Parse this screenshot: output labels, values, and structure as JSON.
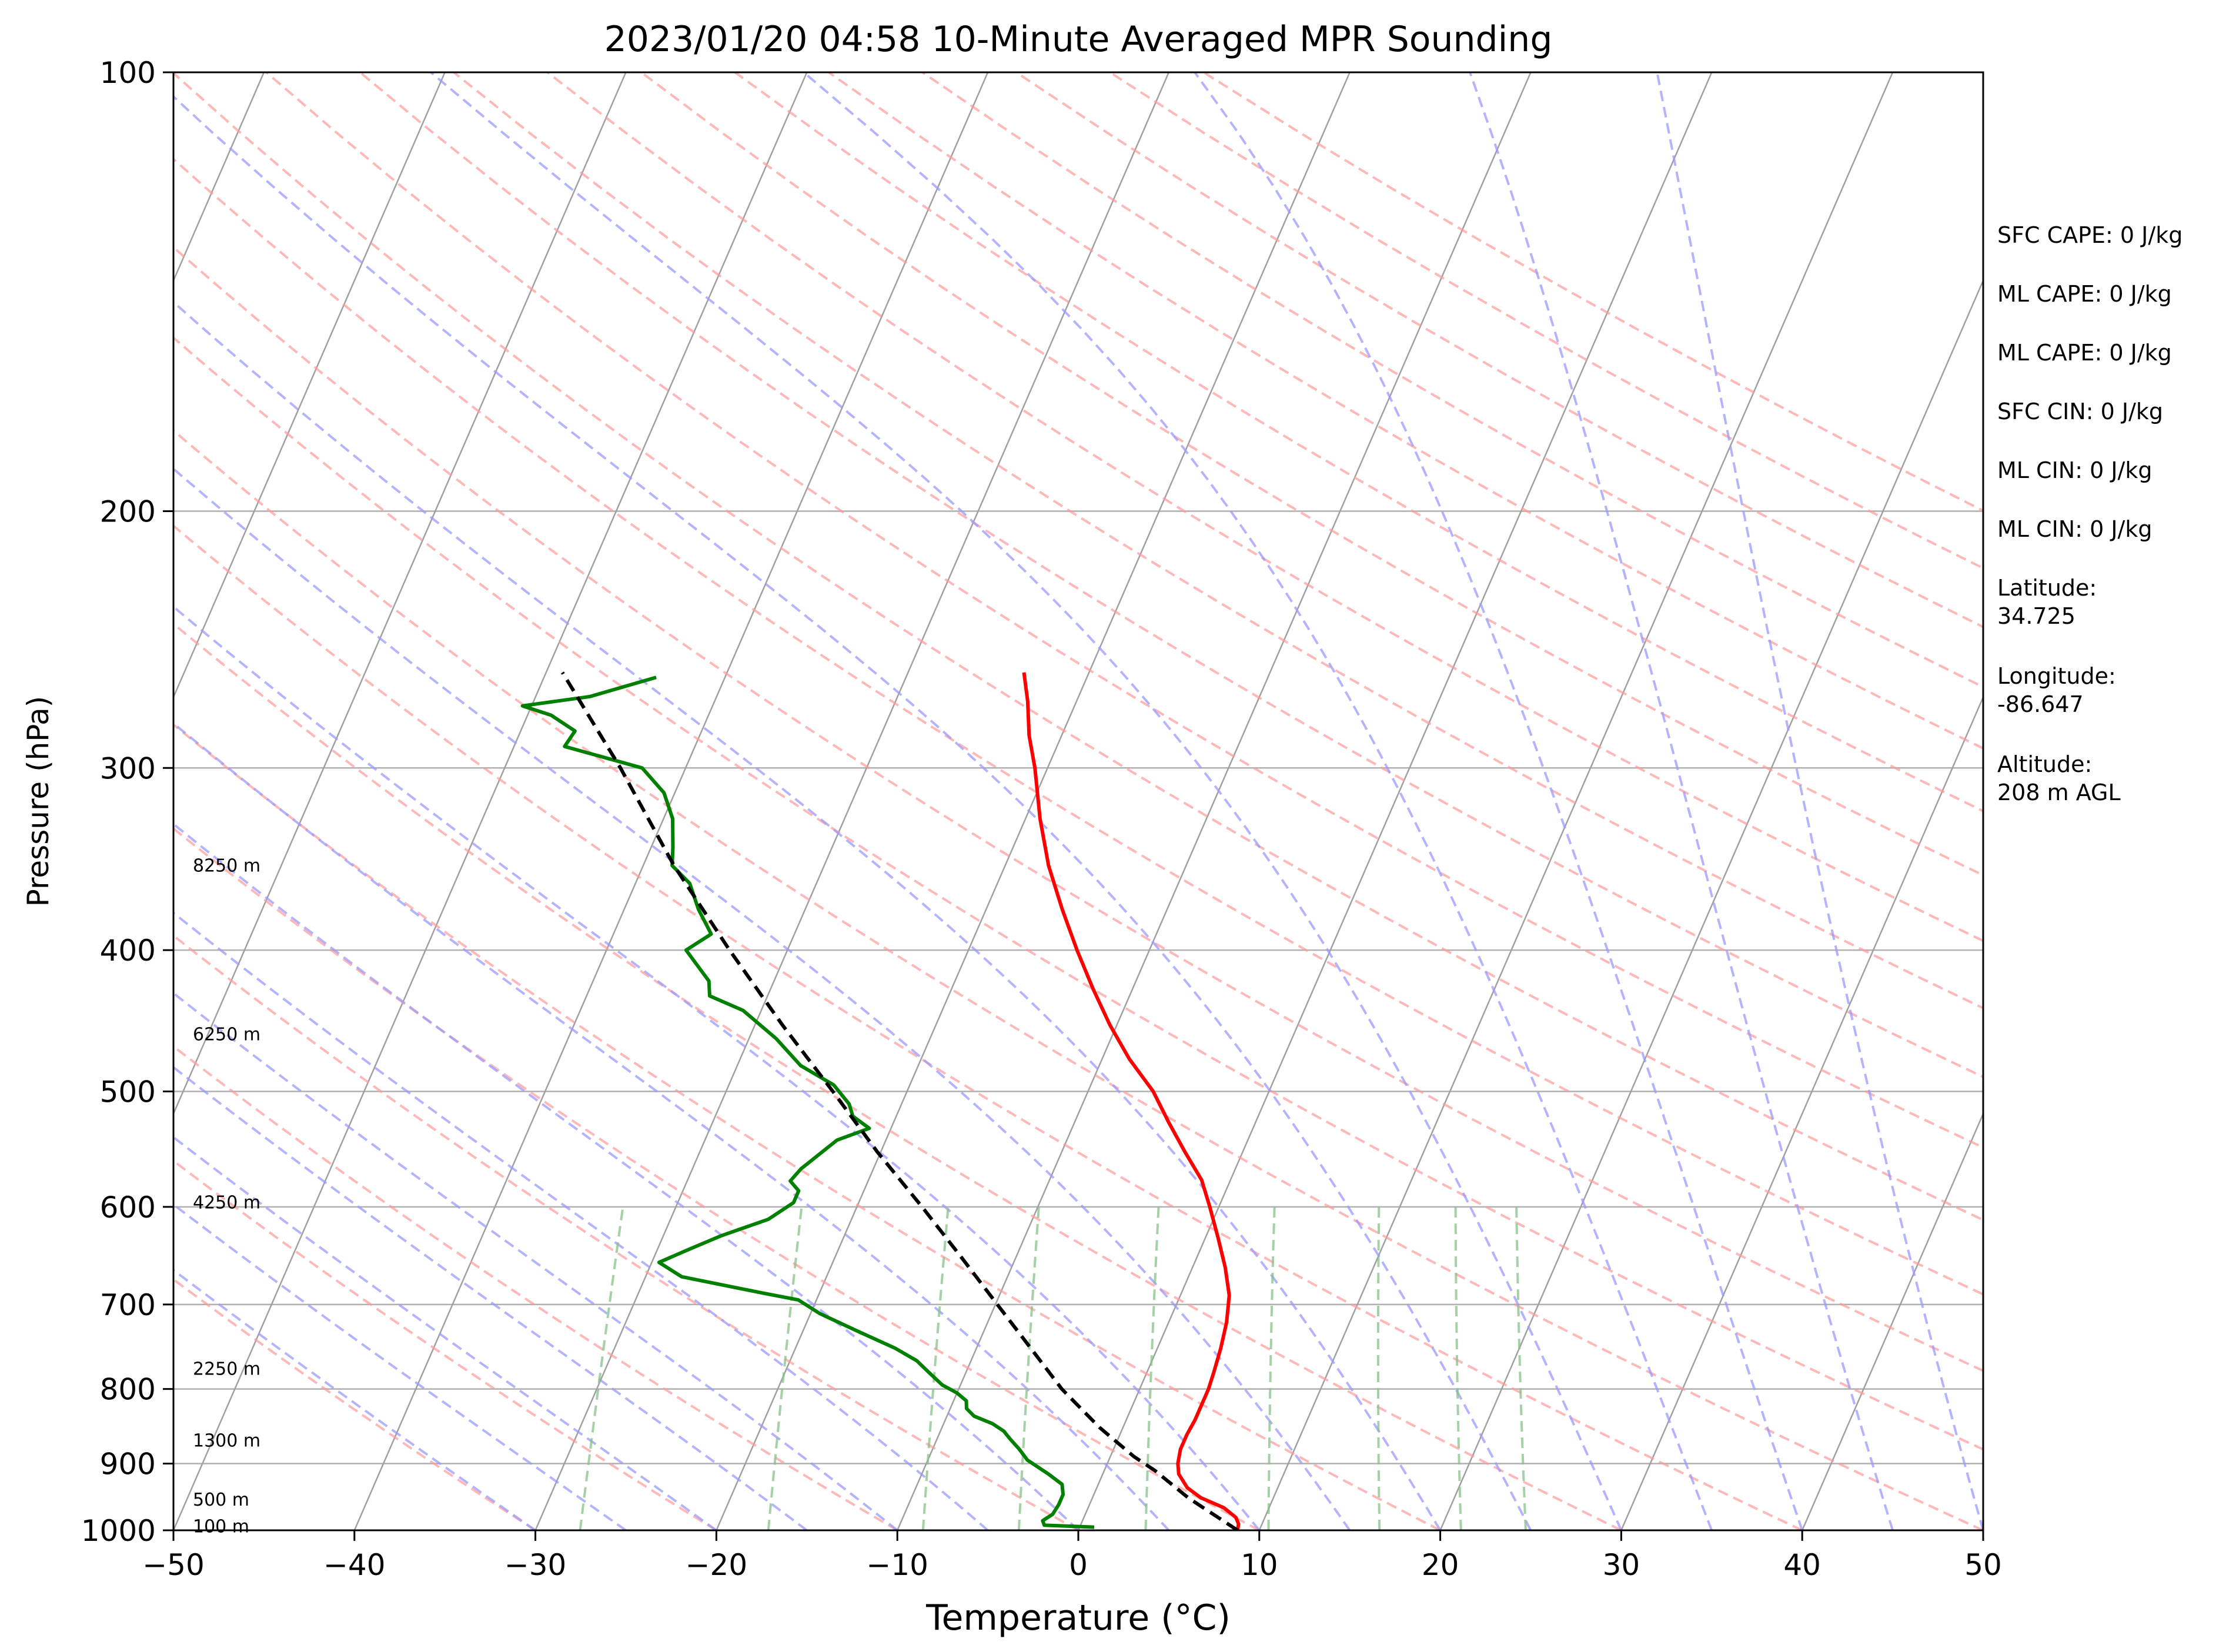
{
  "chart_data": {
    "type": "line",
    "title": "2023/01/20 04:58 10-Minute Averaged MPR Sounding",
    "xlabel": "Temperature (°C)",
    "ylabel": "Pressure (hPa)",
    "xlim": [
      -50,
      50
    ],
    "ylim": [
      1000,
      100
    ],
    "y_scale": "log",
    "skew_t": true,
    "grid": true,
    "x_ticks": [
      -50,
      -40,
      -30,
      -20,
      -10,
      0,
      10,
      20,
      30,
      40,
      50
    ],
    "x_tick_labels": [
      "−50",
      "−40",
      "−30",
      "−20",
      "−10",
      "0",
      "10",
      "20",
      "30",
      "40",
      "50"
    ],
    "y_ticks": [
      100,
      200,
      300,
      400,
      500,
      600,
      700,
      800,
      900,
      1000
    ],
    "y_tick_labels": [
      "100",
      "200",
      "300",
      "400",
      "500",
      "600",
      "700",
      "800",
      "900",
      "1000"
    ],
    "height_labels": [
      {
        "text": "100 m",
        "p": 994
      },
      {
        "text": "500 m",
        "p": 953
      },
      {
        "text": "1300 m",
        "p": 868
      },
      {
        "text": "2250 m",
        "p": 775
      },
      {
        "text": "4250 m",
        "p": 596
      },
      {
        "text": "6250 m",
        "p": 457
      },
      {
        "text": "8250 m",
        "p": 350
      }
    ],
    "series": [
      {
        "role": "temperature",
        "color": "#ff0000",
        "points": [
          [
            8.8,
            1000
          ],
          [
            8.7,
            990
          ],
          [
            8.4,
            980
          ],
          [
            7.5,
            965
          ],
          [
            6.0,
            950
          ],
          [
            5.0,
            935
          ],
          [
            4.2,
            915
          ],
          [
            3.9,
            900
          ],
          [
            3.7,
            880
          ],
          [
            3.7,
            860
          ],
          [
            3.8,
            840
          ],
          [
            3.8,
            820
          ],
          [
            3.8,
            800
          ],
          [
            3.7,
            780
          ],
          [
            3.5,
            750
          ],
          [
            3.2,
            720
          ],
          [
            2.7,
            690
          ],
          [
            1.8,
            660
          ],
          [
            0.7,
            630
          ],
          [
            -0.5,
            600
          ],
          [
            -1.6,
            575
          ],
          [
            -3.2,
            550
          ],
          [
            -4.8,
            525
          ],
          [
            -6.4,
            500
          ],
          [
            -8.5,
            475
          ],
          [
            -10.4,
            450
          ],
          [
            -12.2,
            425
          ],
          [
            -14.0,
            400
          ],
          [
            -15.8,
            375
          ],
          [
            -17.6,
            350
          ],
          [
            -19.2,
            325
          ],
          [
            -20.7,
            300
          ],
          [
            -21.8,
            285
          ],
          [
            -22.7,
            270
          ],
          [
            -23.6,
            258
          ]
        ]
      },
      {
        "role": "dewpoint",
        "color": "#008000",
        "points": [
          [
            0.8,
            995
          ],
          [
            -2.0,
            992
          ],
          [
            -2.2,
            985
          ],
          [
            -1.8,
            975
          ],
          [
            -1.7,
            960
          ],
          [
            -1.7,
            945
          ],
          [
            -2.0,
            930
          ],
          [
            -3.0,
            915
          ],
          [
            -4.5,
            895
          ],
          [
            -5.2,
            880
          ],
          [
            -6.0,
            865
          ],
          [
            -6.5,
            855
          ],
          [
            -7.3,
            845
          ],
          [
            -8.5,
            835
          ],
          [
            -9.1,
            825
          ],
          [
            -9.3,
            815
          ],
          [
            -10.0,
            805
          ],
          [
            -11.0,
            795
          ],
          [
            -12.0,
            780
          ],
          [
            -13.0,
            765
          ],
          [
            -14.5,
            750
          ],
          [
            -17.0,
            730
          ],
          [
            -19.5,
            710
          ],
          [
            -21.0,
            695
          ],
          [
            -23.0,
            688
          ],
          [
            -28.0,
            670
          ],
          [
            -29.6,
            655
          ],
          [
            -28.3,
            642
          ],
          [
            -26.8,
            628
          ],
          [
            -24.6,
            612
          ],
          [
            -23.6,
            596
          ],
          [
            -23.6,
            585
          ],
          [
            -24.3,
            576
          ],
          [
            -24.0,
            565
          ],
          [
            -22.7,
            540
          ],
          [
            -21.2,
            530
          ],
          [
            -22.4,
            520
          ],
          [
            -22.9,
            510
          ],
          [
            -24.2,
            495
          ],
          [
            -26.5,
            480
          ],
          [
            -28.5,
            460
          ],
          [
            -31.0,
            440
          ],
          [
            -33.2,
            430
          ],
          [
            -33.6,
            420
          ],
          [
            -35.6,
            400
          ],
          [
            -34.6,
            390
          ],
          [
            -35.9,
            375
          ],
          [
            -37.0,
            360
          ],
          [
            -38.4,
            350
          ],
          [
            -38.8,
            340
          ],
          [
            -39.5,
            325
          ],
          [
            -40.6,
            312
          ],
          [
            -42.4,
            300
          ],
          [
            -47.2,
            290
          ],
          [
            -47.0,
            283
          ],
          [
            -48.7,
            276
          ],
          [
            -50.5,
            272
          ],
          [
            -47.0,
            268
          ],
          [
            -43.8,
            260
          ]
        ]
      },
      {
        "role": "parcel",
        "color": "#000000",
        "style": "dashed",
        "points": [
          [
            8.8,
            1000
          ],
          [
            5.3,
            950
          ],
          [
            2.8,
            910
          ],
          [
            1.3,
            890
          ],
          [
            -1.3,
            850
          ],
          [
            -4.3,
            800
          ],
          [
            -7.0,
            750
          ],
          [
            -9.9,
            700
          ],
          [
            -13.0,
            650
          ],
          [
            -16.4,
            600
          ],
          [
            -20.2,
            550
          ],
          [
            -24.1,
            500
          ],
          [
            -28.5,
            450
          ],
          [
            -33.2,
            400
          ],
          [
            -38.3,
            350
          ],
          [
            -43.6,
            300
          ],
          [
            -49.1,
            258
          ]
        ]
      }
    ],
    "stats": [
      [
        "SFC CAPE: 0 J/kg"
      ],
      [
        "ML CAPE: 0 J/kg"
      ],
      [
        "ML CAPE: 0 J/kg"
      ],
      [
        "SFC CIN: 0 J/kg"
      ],
      [
        "ML CIN: 0 J/kg"
      ],
      [
        "ML CIN: 0 J/kg"
      ],
      [
        "Latitude:",
        "34.725"
      ],
      [
        "Longitude:",
        "-86.647"
      ],
      [
        "Altitude:",
        "208 m AGL"
      ]
    ],
    "reference_lines": {
      "dry_adiabats": {
        "color": "#ff9999",
        "style": "dashed"
      },
      "moist_adiabats": {
        "color": "#9999ff",
        "style": "dashed"
      },
      "mixing_ratio": {
        "color": "#88c088",
        "style": "dashed"
      },
      "isotherms": {
        "color": "#a0a0a0",
        "style": "solid"
      }
    }
  }
}
